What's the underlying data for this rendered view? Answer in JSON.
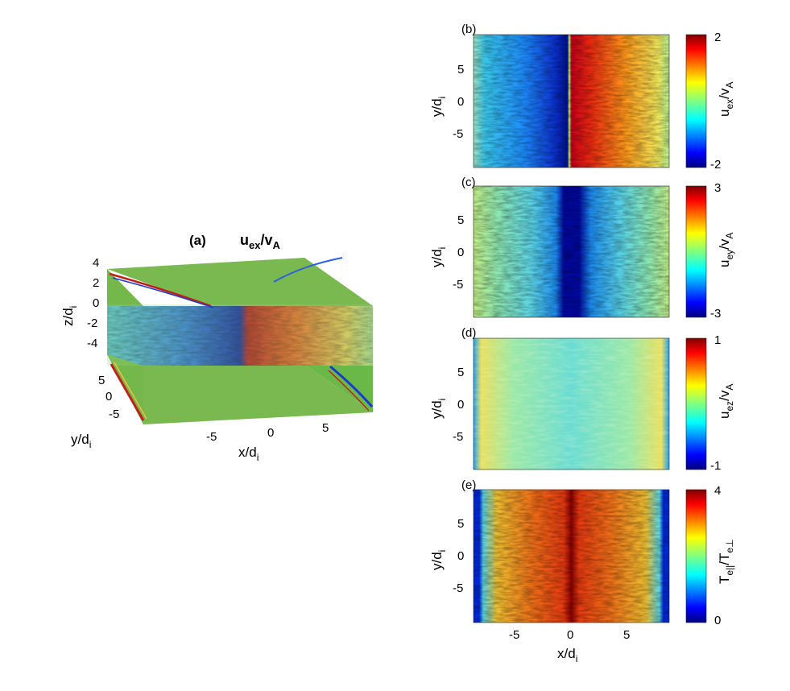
{
  "chart_data": [
    {
      "id": "a",
      "type": "surface3d",
      "panel_label": "(a)",
      "title_main": "u",
      "title_sub": "ex",
      "title_main2": "/v",
      "title_sub2": "A",
      "xlabel_main": "x/d",
      "xlabel_sub": "i",
      "ylabel_main": "y/d",
      "ylabel_sub": "i",
      "zlabel_main": "z/d",
      "zlabel_sub": "i",
      "xticks": [
        "-5",
        "0",
        "5"
      ],
      "yticks": [
        "5",
        "0",
        "-5"
      ],
      "zticks": [
        "4",
        "2",
        "0",
        "-2",
        "-4"
      ],
      "colormap": "jet"
    },
    {
      "id": "b",
      "type": "heatmap",
      "panel_label": "(b)",
      "cbar_label_main": "u",
      "cbar_label_sub": "ex",
      "cbar_label_main2": "/v",
      "cbar_label_sub2": "A",
      "cbar_ticks": [
        "2",
        "-2"
      ],
      "cbar_range": [
        -2,
        2
      ],
      "ylabel_main": "y/d",
      "ylabel_sub": "i",
      "yticks": [
        "5",
        "0",
        "-5"
      ],
      "colormap": "jet"
    },
    {
      "id": "c",
      "type": "heatmap",
      "panel_label": "(c)",
      "cbar_label_main": "u",
      "cbar_label_sub": "ey",
      "cbar_label_main2": "/v",
      "cbar_label_sub2": "A",
      "cbar_ticks": [
        "3",
        "-3"
      ],
      "cbar_range": [
        -3,
        3
      ],
      "ylabel_main": "y/d",
      "ylabel_sub": "i",
      "yticks": [
        "5",
        "0",
        "-5"
      ],
      "colormap": "jet"
    },
    {
      "id": "d",
      "type": "heatmap",
      "panel_label": "(d)",
      "cbar_label_main": "u",
      "cbar_label_sub": "ez",
      "cbar_label_main2": "/v",
      "cbar_label_sub2": "A",
      "cbar_ticks": [
        "1",
        "-1"
      ],
      "cbar_range": [
        -1,
        1
      ],
      "ylabel_main": "y/d",
      "ylabel_sub": "i",
      "yticks": [
        "5",
        "0",
        "-5"
      ],
      "colormap": "jet"
    },
    {
      "id": "e",
      "type": "heatmap",
      "panel_label": "(e)",
      "cbar_label_main": "T",
      "cbar_label_sub": "e||",
      "cbar_label_main2": "/T",
      "cbar_label_sub2": "e⊥",
      "cbar_ticks": [
        "4",
        "0"
      ],
      "cbar_range": [
        0,
        4
      ],
      "ylabel_main": "y/d",
      "ylabel_sub": "i",
      "yticks": [
        "5",
        "0",
        "-5"
      ],
      "xlabel_main": "x/d",
      "xlabel_sub": "i",
      "xticks": [
        "-5",
        "0",
        "5"
      ],
      "colormap": "jet"
    }
  ]
}
